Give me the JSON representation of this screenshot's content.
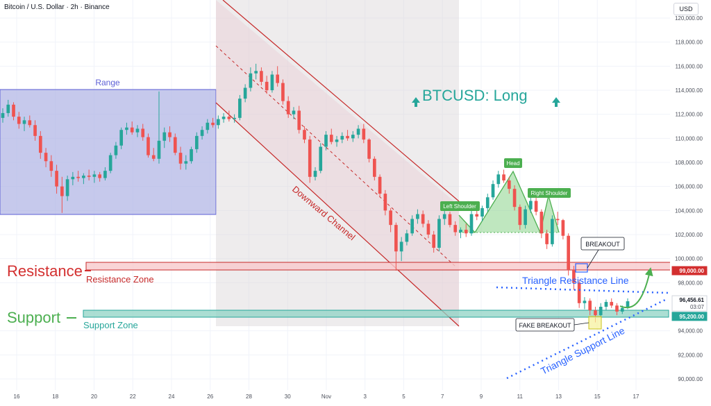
{
  "header": {
    "symbol_line": "Bitcoin / U.S. Dollar · 2h · Binance"
  },
  "currency_button": "USD",
  "colors": {
    "up": "#26a69a",
    "down": "#ef5350",
    "range_fill": "#b3b7e6",
    "range_border": "#5c5fd6",
    "channel": "#c2185b",
    "resistance": "#d32f2f",
    "support": "#26a69a",
    "triangle": "#2962ff",
    "pattern": "#4caf50"
  },
  "chart_data": {
    "type": "candlestick",
    "title": "BTCUSD: Long",
    "y_axis": {
      "ticks": [
        "120,000.00",
        "118,000.00",
        "116,000.00",
        "114,000.00",
        "112,000.00",
        "110,000.00",
        "108,000.00",
        "106,000.00",
        "104,000.00",
        "102,000.00",
        "100,000.00",
        "98,000.00",
        "94,000.00",
        "92,000.00",
        "90,000.00"
      ],
      "ylim": [
        89500,
        121000
      ],
      "price_labels": [
        {
          "text": "99,000.00",
          "value": 99000,
          "style": "resistance"
        },
        {
          "text": "96,456.61",
          "sub": "03:07",
          "value": 96456.61,
          "style": "last"
        },
        {
          "text": "95,200.00",
          "value": 95200,
          "style": "support"
        }
      ]
    },
    "x_axis": {
      "ticks": [
        "16",
        "18",
        "20",
        "22",
        "24",
        "26",
        "28",
        "30",
        "Nov",
        "3",
        "5",
        "7",
        "9",
        "11",
        "13",
        "15",
        "17"
      ]
    },
    "series": [
      {
        "values": [
          [
            111700,
            112500,
            111300,
            112100
          ],
          [
            112100,
            113200,
            111800,
            112800
          ],
          [
            112800,
            113000,
            111500,
            111800
          ],
          [
            111800,
            112200,
            110800,
            111200
          ],
          [
            111200,
            111800,
            110600,
            111500
          ],
          [
            111500,
            111900,
            110900,
            111100
          ],
          [
            111100,
            111500,
            109800,
            110200
          ],
          [
            110200,
            110600,
            108300,
            108800
          ],
          [
            108800,
            109200,
            107600,
            108100
          ],
          [
            108100,
            108600,
            106800,
            107300
          ],
          [
            107300,
            107800,
            105400,
            106000
          ],
          [
            106000,
            106800,
            103800,
            105200
          ],
          [
            105200,
            106900,
            104800,
            106600
          ],
          [
            106600,
            107200,
            106100,
            106800
          ],
          [
            106800,
            107300,
            106400,
            106700
          ],
          [
            106700,
            107100,
            106200,
            106900
          ],
          [
            106900,
            107400,
            106500,
            106800
          ],
          [
            106800,
            107300,
            106300,
            107000
          ],
          [
            107000,
            107200,
            106400,
            106700
          ],
          [
            106700,
            107600,
            106500,
            107300
          ],
          [
            107300,
            108800,
            107100,
            108600
          ],
          [
            108600,
            109700,
            108300,
            109400
          ],
          [
            109400,
            110900,
            109100,
            110700
          ],
          [
            110700,
            111300,
            110300,
            110900
          ],
          [
            110900,
            111400,
            110300,
            110500
          ],
          [
            110500,
            111100,
            110100,
            110800
          ],
          [
            110800,
            111200,
            109800,
            110100
          ],
          [
            110100,
            110400,
            108400,
            108600
          ],
          [
            108600,
            109200,
            108100,
            108300
          ],
          [
            108300,
            113900,
            107900,
            109800
          ],
          [
            109800,
            110900,
            109200,
            110500
          ],
          [
            110500,
            111000,
            109700,
            110100
          ],
          [
            110100,
            110400,
            108600,
            108800
          ],
          [
            108800,
            109300,
            107400,
            107900
          ],
          [
            107900,
            108600,
            107400,
            108100
          ],
          [
            108100,
            109300,
            107900,
            109100
          ],
          [
            109100,
            110500,
            108800,
            110200
          ],
          [
            110200,
            111000,
            109900,
            110700
          ],
          [
            110700,
            111600,
            110400,
            111300
          ],
          [
            111300,
            111700,
            110900,
            111100
          ],
          [
            111100,
            111900,
            110800,
            111600
          ],
          [
            111600,
            112100,
            111300,
            111800
          ],
          [
            111800,
            112300,
            111400,
            111600
          ],
          [
            111600,
            112000,
            111300,
            111700
          ],
          [
            111700,
            113600,
            111500,
            113300
          ],
          [
            113300,
            114500,
            113000,
            114200
          ],
          [
            114200,
            115900,
            113900,
            115400
          ],
          [
            115400,
            116200,
            114900,
            115600
          ],
          [
            115600,
            115900,
            114400,
            114700
          ],
          [
            114700,
            115200,
            113700,
            114000
          ],
          [
            114000,
            115600,
            113800,
            115300
          ],
          [
            115300,
            116000,
            114300,
            114600
          ],
          [
            114600,
            114900,
            112800,
            113100
          ],
          [
            113100,
            113500,
            111700,
            112000
          ],
          [
            112000,
            112600,
            111600,
            112300
          ],
          [
            112300,
            112700,
            110400,
            110700
          ],
          [
            110700,
            111000,
            109600,
            109900
          ],
          [
            109900,
            110200,
            106300,
            106800
          ],
          [
            106800,
            107600,
            106500,
            107300
          ],
          [
            107300,
            109600,
            107100,
            109300
          ],
          [
            109300,
            110600,
            109000,
            110300
          ],
          [
            110300,
            110800,
            109500,
            109700
          ],
          [
            109700,
            110200,
            109300,
            109900
          ],
          [
            109900,
            110500,
            109600,
            110200
          ],
          [
            110200,
            110700,
            109800,
            110000
          ],
          [
            110000,
            110600,
            109700,
            110300
          ],
          [
            110300,
            111100,
            110000,
            110800
          ],
          [
            110800,
            111200,
            109600,
            109900
          ],
          [
            109900,
            110000,
            108000,
            108300
          ],
          [
            108300,
            108500,
            106500,
            106800
          ],
          [
            106800,
            107000,
            105100,
            105400
          ],
          [
            105400,
            105700,
            103600,
            104000
          ],
          [
            104000,
            104200,
            102200,
            102800
          ],
          [
            102800,
            103000,
            99000,
            100600
          ],
          [
            100600,
            101800,
            99800,
            101400
          ],
          [
            101400,
            102400,
            101100,
            102100
          ],
          [
            102100,
            103600,
            101900,
            103300
          ],
          [
            103300,
            104100,
            102900,
            103700
          ],
          [
            103700,
            104000,
            102600,
            102900
          ],
          [
            102900,
            103200,
            101700,
            102000
          ],
          [
            102000,
            102300,
            100500,
            100900
          ],
          [
            100900,
            103600,
            100600,
            103300
          ],
          [
            103300,
            104100,
            102800,
            103700
          ],
          [
            103700,
            103900,
            102600,
            102800
          ],
          [
            102800,
            103100,
            101900,
            102200
          ],
          [
            102200,
            102600,
            101700,
            102400
          ],
          [
            102400,
            102900,
            101800,
            102100
          ],
          [
            102100,
            104000,
            101900,
            103700
          ],
          [
            103700,
            104300,
            103200,
            103500
          ],
          [
            103500,
            104400,
            103100,
            104200
          ],
          [
            104200,
            105400,
            103900,
            105100
          ],
          [
            105100,
            106500,
            104900,
            106200
          ],
          [
            106200,
            107300,
            105900,
            107000
          ],
          [
            107000,
            107400,
            106300,
            106500
          ],
          [
            106500,
            106800,
            105400,
            105800
          ],
          [
            105800,
            106100,
            104000,
            104300
          ],
          [
            104300,
            104500,
            102400,
            102800
          ],
          [
            102800,
            104400,
            102500,
            104100
          ],
          [
            104100,
            105100,
            103800,
            104800
          ],
          [
            104800,
            105200,
            103600,
            103900
          ],
          [
            103900,
            104100,
            101700,
            102100
          ],
          [
            102100,
            102400,
            100800,
            101200
          ],
          [
            101200,
            103600,
            101000,
            103300
          ],
          [
            103300,
            103900,
            102800,
            103200
          ],
          [
            103200,
            103300,
            101600,
            101900
          ],
          [
            101900,
            102100,
            98600,
            99100
          ],
          [
            99100,
            99400,
            97400,
            98000
          ],
          [
            98000,
            98200,
            95900,
            96300
          ],
          [
            96300,
            96800,
            95800,
            96500
          ],
          [
            96500,
            96700,
            95300,
            95700
          ],
          [
            95700,
            96000,
            94700,
            95300
          ],
          [
            95300,
            96300,
            95100,
            96000
          ],
          [
            96000,
            96600,
            95700,
            96400
          ],
          [
            96400,
            96700,
            95900,
            96100
          ],
          [
            96100,
            96300,
            95300,
            95600
          ],
          [
            95600,
            96100,
            95400,
            95900
          ],
          [
            95900,
            96700,
            95800,
            96456
          ]
        ]
      }
    ]
  },
  "annotations": {
    "range_label": "Range",
    "channel_label": "Downward Channel",
    "big_title": "BTCUSD: Long",
    "resistance_label": "Resistance",
    "resistance_zone_label": "Resistance Zone",
    "support_label": "Support",
    "support_zone_label": "Support Zone",
    "left_shoulder": "Left Shoulder",
    "head": "Head",
    "right_shoulder": "Right Shoulder",
    "breakout": "BREAKOUT",
    "fake_breakout": "FAKE BREAKOUT",
    "triangle_resistance": "Triangle Resistance Line",
    "triangle_support": "Triangle Support Line"
  }
}
